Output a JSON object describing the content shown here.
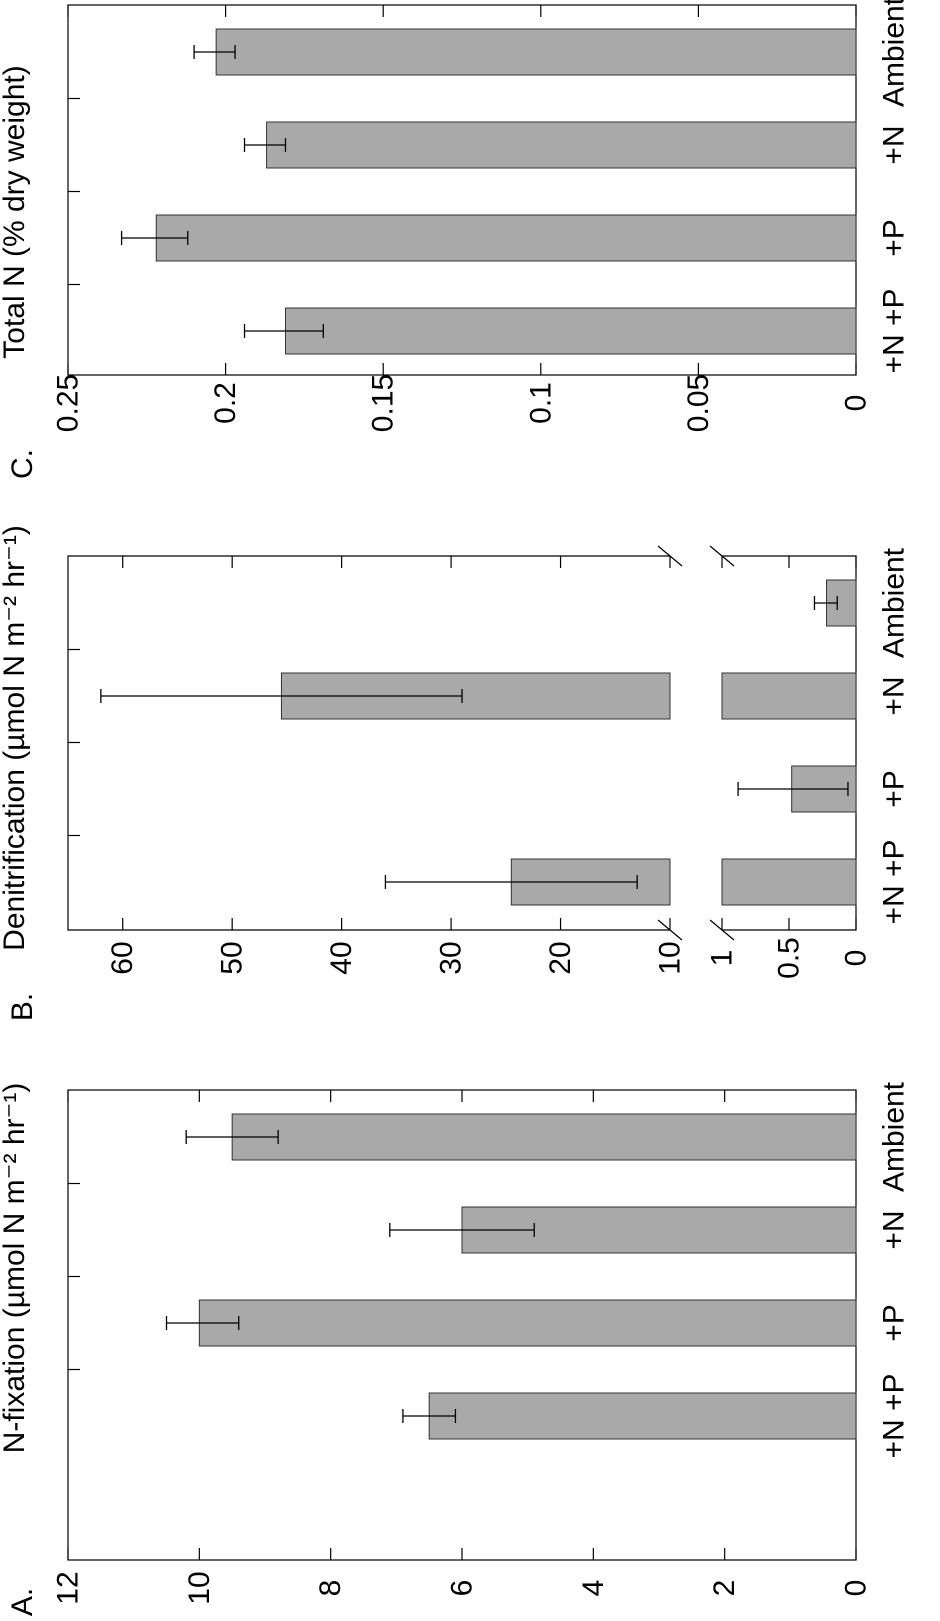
{
  "chart_data": [
    {
      "panel_label": "A.",
      "type": "bar",
      "ylabel": "N-fixation (µmol N m⁻² hr⁻¹)",
      "ylim": [
        0,
        12
      ],
      "yticks": [
        "0",
        "2",
        "4",
        "6",
        "8",
        "10",
        "12"
      ],
      "categories": [
        "Ambient",
        "+N",
        "+P",
        "+N +P"
      ],
      "values": [
        9.5,
        6.0,
        10.0,
        6.5
      ],
      "err_low": [
        8.8,
        4.9,
        9.4,
        6.1
      ],
      "err_high": [
        10.2,
        7.1,
        10.5,
        6.9
      ],
      "bar_color": "#a9a9a9",
      "grid": false
    },
    {
      "panel_label": "B.",
      "type": "bar",
      "ylabel": "Denitrification (µmol N m⁻² hr⁻¹)",
      "axis_break": "broken y-axis: lower segment 0–1, upper segment 10–65",
      "yticks_lower": [
        "0",
        "0.5",
        "1"
      ],
      "yticks_upper": [
        "10",
        "20",
        "30",
        "40",
        "50",
        "60"
      ],
      "categories": [
        "Ambient",
        "+N",
        "+P",
        "+N +P"
      ],
      "values": [
        0.22,
        45.5,
        0.48,
        24.5
      ],
      "err_low": [
        0.14,
        29.0,
        0.06,
        13.0
      ],
      "err_high": [
        0.31,
        62.0,
        0.88,
        36.0
      ],
      "bar_color": "#a9a9a9",
      "grid": false
    },
    {
      "panel_label": "C.",
      "type": "bar",
      "ylabel": "Total N (% dry weight)",
      "ylim": [
        0,
        0.25
      ],
      "yticks": [
        "0",
        "0.05",
        "0.1",
        "0.15",
        "0.2",
        "0.25"
      ],
      "categories": [
        "Ambient",
        "+N",
        "+P",
        "+N +P"
      ],
      "values": [
        0.203,
        0.187,
        0.222,
        0.181
      ],
      "err_low": [
        0.197,
        0.181,
        0.212,
        0.169
      ],
      "err_high": [
        0.21,
        0.194,
        0.233,
        0.194
      ],
      "bar_color": "#a9a9a9",
      "grid": false
    }
  ]
}
